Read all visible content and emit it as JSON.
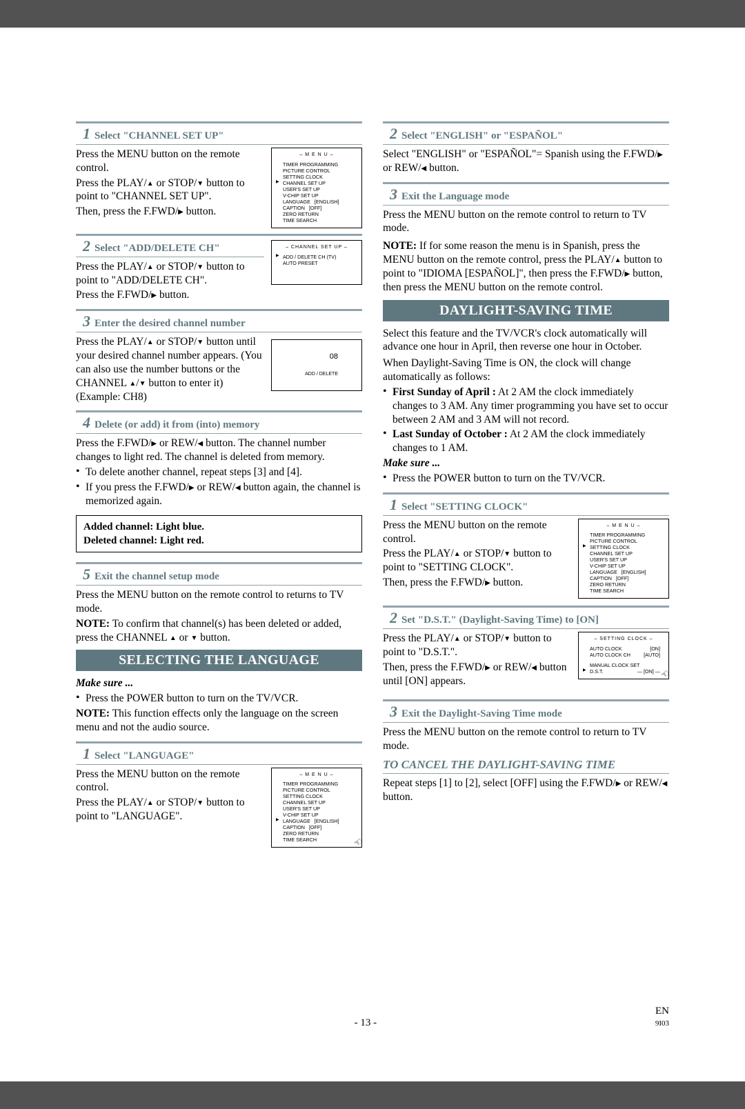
{
  "footer": {
    "page": "- 13 -",
    "lang": "EN",
    "code": "9I03"
  },
  "arrows": {
    "up": "▲",
    "down": "▼",
    "right": "▶",
    "left": "◀"
  },
  "left": {
    "s1": {
      "title": "Select \"CHANNEL SET UP\"",
      "p1a": "Press the MENU button on the remote control.",
      "p1b_a": "Press the PLAY/",
      "p1b_b": " or STOP/",
      "p1b_c": " button to point to \"CHANNEL SET UP\".",
      "p1c_a": "Then, press the F.FWD/",
      "p1c_b": " button.",
      "menu": {
        "hdr": "– M E N U –",
        "items": [
          "TIMER PROGRAMMING",
          "PICTURE CONTROL",
          "SETTING CLOCK",
          "CHANNEL SET UP",
          "USER'S SET UP",
          "V-CHIP SET UP",
          "LANGUAGE   [ENGLISH]",
          "CAPTION   [OFF]",
          "ZERO RETURN",
          "TIME SEARCH"
        ],
        "ptr": 3
      }
    },
    "s2": {
      "title": "Select \"ADD/DELETE CH\"",
      "p_a": "Press the PLAY/",
      "p_b": " or STOP/",
      "p_c": " button to point to \"ADD/DELETE CH\".",
      "p2_a": "Press the F.FWD/",
      "p2_b": " button.",
      "menu": {
        "hdr": "– CHANNEL SET UP –",
        "items": [
          "ADD / DELETE CH (TV)",
          "AUTO PRESET"
        ],
        "ptr": 0
      }
    },
    "s3": {
      "title": "Enter the desired channel number",
      "p_a": "Press the PLAY/",
      "p_b": " or STOP/",
      "p_c": " button until your desired channel number appears. (You can also use the number buttons  or the CHANNEL ",
      "p_d": "/",
      "p_e": " button to enter it) (Example: CH8)",
      "screen": {
        "num": "08",
        "lbl": "ADD / DELETE"
      }
    },
    "s4": {
      "title": "Delete (or add) it from (into) memory",
      "p_a": "Press the F.FWD/",
      "p_b": " or REW/",
      "p_c": " button. The channel number changes to light red. The channel is deleted from memory.",
      "b1": "To delete another channel, repeat steps [3] and [4].",
      "b2_a": "If you press the F.FWD/",
      "b2_b": " or REW/",
      "b2_c": " button again, the channel is memorized again."
    },
    "note": {
      "l1": "Added channel: Light blue.",
      "l2": "Deleted channel: Light red."
    },
    "s5": {
      "title": "Exit the channel setup mode",
      "p1": "Press the MENU button on the remote control to returns to TV mode.",
      "p2_a": "NOTE:",
      "p2_b": " To confirm that channel(s) has been deleted or added, press the CHANNEL ",
      "p2_c": " or ",
      "p2_d": " button."
    },
    "lang_section": {
      "bar": "SELECTING THE LANGUAGE",
      "ms": "Make sure ...",
      "b1": "Press the POWER button to turn on the TV/VCR.",
      "note_a": "NOTE:",
      "note_b": " This function effects only the language on the screen menu and not the audio source."
    },
    "l1": {
      "title": "Select \"LANGUAGE\"",
      "p1": "Press the MENU button on the remote control.",
      "p2_a": "Press the PLAY/",
      "p2_b": " or STOP/",
      "p2_c": " button to point to \"LANGUAGE\".",
      "menu": {
        "hdr": "– M E N U –",
        "items": [
          "TIMER PROGRAMMING",
          "PICTURE CONTROL",
          "SETTING CLOCK",
          "CHANNEL SET UP",
          "USER'S SET UP",
          "V-CHIP SET UP",
          "LANGUAGE   [ENGLISH]",
          "CAPTION   [OFF]",
          "ZERO RETURN",
          "TIME SEARCH"
        ],
        "ptr": 6
      }
    }
  },
  "right": {
    "r2": {
      "title": "Select \"ENGLISH\" or \"ESPAÑOL\"",
      "p_a": "Select \"ENGLISH\" or \"ESPAÑOL\"= Spanish using the F.FWD/",
      "p_b": " or REW/",
      "p_c": " button."
    },
    "r3": {
      "title": "Exit the Language mode",
      "p": "Press the MENU button on the remote control to return to TV mode.",
      "note_a": "NOTE:",
      "note_b": " If for some reason the menu is in Spanish, press the MENU button on the remote control, press the PLAY/",
      "note_c": " button to point to \"IDIOMA [ESPAÑOL]\", then press the F.FWD/",
      "note_d": " button, then press the MENU button on the remote control."
    },
    "dst": {
      "bar": "DAYLIGHT-SAVING TIME",
      "intro": "Select this feature and the TV/VCR's clock automatically will advance one hour in April, then reverse one hour in October.",
      "intro2": "When Daylight-Saving Time is ON, the clock will change automatically as follows:",
      "b1_a": "First Sunday of April :",
      "b1_b": " At 2 AM the clock immediately changes to 3 AM. Any timer programming you have set to occur between 2 AM and 3 AM will not record.",
      "b2_a": "Last Sunday of October :",
      "b2_b": " At 2 AM the clock immediately changes to 1 AM.",
      "ms": "Make sure ...",
      "msb": "Press the POWER button to turn on the TV/VCR."
    },
    "d1": {
      "title": "Select \"SETTING CLOCK\"",
      "p1": "Press the MENU button on the remote control.",
      "p2_a": "Press the PLAY/",
      "p2_b": " or STOP/",
      "p2_c": " button to point to \"SETTING CLOCK\".",
      "p3_a": "Then, press the F.FWD/",
      "p3_b": " button.",
      "menu": {
        "hdr": "– M E N U –",
        "items": [
          "TIMER PROGRAMMING",
          "PICTURE CONTROL",
          "SETTING CLOCK",
          "CHANNEL SET UP",
          "USER'S SET UP",
          "V-CHIP SET UP",
          "LANGUAGE   [ENGLISH]",
          "CAPTION   [OFF]",
          "ZERO RETURN",
          "TIME SEARCH"
        ],
        "ptr": 2
      }
    },
    "d2": {
      "title": "Set \"D.S.T.\" (Daylight-Saving Time) to [ON]",
      "p1_a": "Press the PLAY/",
      "p1_b": " or STOP/",
      "p1_c": " button to point to \"D.S.T.\".",
      "p2_a": "Then, press the F.FWD/",
      "p2_b": " or REW/",
      "p2_c": " button until [ON] appears.",
      "menu": {
        "hdr": "– SETTING CLOCK –",
        "rows": [
          {
            "l": "AUTO CLOCK",
            "r": "[ON]"
          },
          {
            "l": "AUTO CLOCK CH",
            "r": "[AUTO]"
          },
          {
            "l": "MANUAL CLOCK SET",
            "r": ""
          },
          {
            "l": "D.S.T.",
            "r": "— [ON] —"
          }
        ],
        "ptr": 3
      }
    },
    "d3": {
      "title": "Exit the Daylight-Saving Time mode",
      "p": "Press the MENU button on the remote control to return to TV mode."
    },
    "cancel": {
      "hdr": "TO CANCEL THE DAYLIGHT-SAVING TIME",
      "p_a": "Repeat steps [1] to [2], select [OFF] using the F.FWD/",
      "p_b": " or REW/",
      "p_c": " button."
    }
  }
}
